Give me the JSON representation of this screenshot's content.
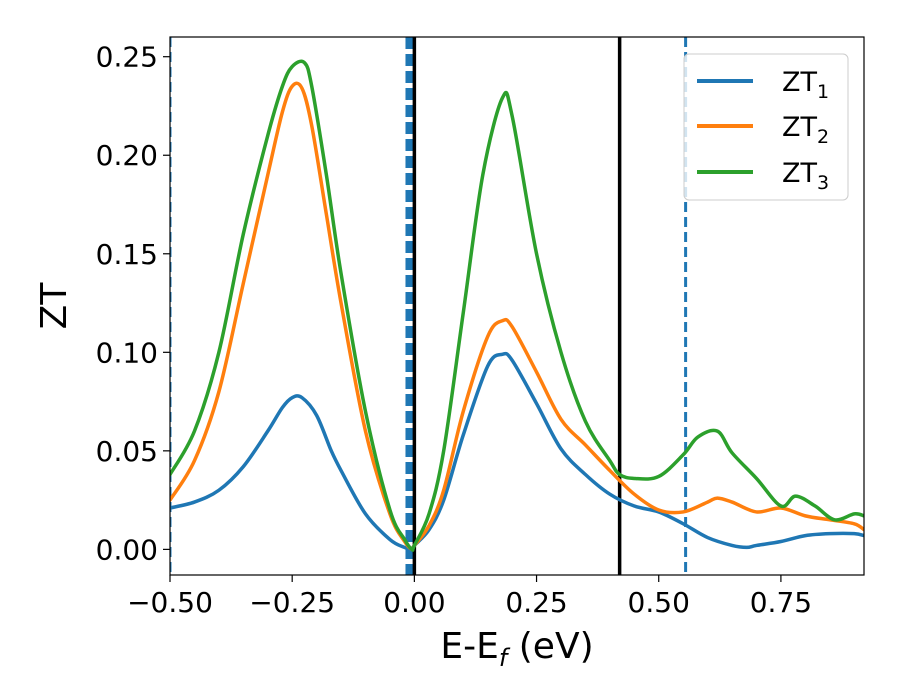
{
  "chart_data": {
    "type": "line",
    "xlabel": "E-E",
    "xlabel_sub": "f",
    "xlabel_unit": " (eV)",
    "ylabel": "ZT",
    "xlim": [
      -0.5,
      0.92
    ],
    "ylim": [
      -0.013,
      0.26
    ],
    "xticks": [
      -0.5,
      -0.25,
      0.0,
      0.25,
      0.5,
      0.75
    ],
    "xtick_labels": [
      "−0.50",
      "−0.25",
      "0.00",
      "0.25",
      "0.50",
      "0.75"
    ],
    "yticks": [
      0.0,
      0.05,
      0.1,
      0.15,
      0.2,
      0.25
    ],
    "ytick_labels": [
      "0.00",
      "0.05",
      "0.10",
      "0.15",
      "0.20",
      "0.25"
    ],
    "grid": false,
    "legend_position": "top-right",
    "series": [
      {
        "name": "ZT",
        "name_sub": "1",
        "color": "#1f77b4",
        "x": [
          -0.5,
          -0.45,
          -0.4,
          -0.35,
          -0.3,
          -0.27,
          -0.25,
          -0.23,
          -0.2,
          -0.17,
          -0.15,
          -0.1,
          -0.05,
          -0.02,
          -0.005,
          0.0,
          0.03,
          0.06,
          0.1,
          0.15,
          0.18,
          0.2,
          0.25,
          0.3,
          0.35,
          0.4,
          0.45,
          0.5,
          0.55,
          0.6,
          0.65,
          0.68,
          0.7,
          0.75,
          0.8,
          0.85,
          0.9,
          0.92
        ],
        "y": [
          0.021,
          0.024,
          0.03,
          0.042,
          0.06,
          0.072,
          0.077,
          0.077,
          0.068,
          0.05,
          0.04,
          0.018,
          0.005,
          0.001,
          0.0,
          0.002,
          0.01,
          0.025,
          0.058,
          0.093,
          0.099,
          0.096,
          0.074,
          0.051,
          0.038,
          0.028,
          0.022,
          0.019,
          0.013,
          0.006,
          0.002,
          0.001,
          0.002,
          0.004,
          0.007,
          0.008,
          0.008,
          0.007
        ]
      },
      {
        "name": "ZT",
        "name_sub": "2",
        "color": "#ff7f0e",
        "x": [
          -0.5,
          -0.45,
          -0.4,
          -0.35,
          -0.3,
          -0.27,
          -0.25,
          -0.23,
          -0.21,
          -0.18,
          -0.15,
          -0.1,
          -0.05,
          -0.02,
          -0.005,
          0.0,
          0.03,
          0.06,
          0.1,
          0.15,
          0.18,
          0.2,
          0.25,
          0.3,
          0.35,
          0.4,
          0.45,
          0.5,
          0.55,
          0.6,
          0.62,
          0.65,
          0.7,
          0.75,
          0.8,
          0.85,
          0.9,
          0.92
        ],
        "y": [
          0.025,
          0.045,
          0.08,
          0.135,
          0.19,
          0.222,
          0.235,
          0.234,
          0.215,
          0.17,
          0.125,
          0.06,
          0.018,
          0.004,
          0.0,
          0.002,
          0.012,
          0.03,
          0.07,
          0.108,
          0.116,
          0.113,
          0.09,
          0.066,
          0.053,
          0.04,
          0.028,
          0.02,
          0.019,
          0.024,
          0.026,
          0.024,
          0.019,
          0.021,
          0.017,
          0.015,
          0.013,
          0.01
        ]
      },
      {
        "name": "ZT",
        "name_sub": "3",
        "color": "#2ca02c",
        "x": [
          -0.5,
          -0.45,
          -0.4,
          -0.35,
          -0.3,
          -0.27,
          -0.25,
          -0.225,
          -0.21,
          -0.18,
          -0.15,
          -0.1,
          -0.05,
          -0.02,
          -0.005,
          0.0,
          0.03,
          0.06,
          0.1,
          0.14,
          0.18,
          0.2,
          0.25,
          0.3,
          0.35,
          0.4,
          0.42,
          0.45,
          0.5,
          0.55,
          0.58,
          0.62,
          0.65,
          0.7,
          0.75,
          0.78,
          0.82,
          0.86,
          0.9,
          0.92
        ],
        "y": [
          0.038,
          0.06,
          0.1,
          0.16,
          0.21,
          0.235,
          0.245,
          0.247,
          0.235,
          0.19,
          0.14,
          0.07,
          0.02,
          0.005,
          0.0,
          0.002,
          0.018,
          0.05,
          0.12,
          0.19,
          0.229,
          0.22,
          0.15,
          0.1,
          0.065,
          0.045,
          0.038,
          0.036,
          0.037,
          0.048,
          0.057,
          0.06,
          0.049,
          0.036,
          0.022,
          0.027,
          0.022,
          0.015,
          0.018,
          0.017
        ]
      }
    ],
    "vlines": [
      {
        "x": -0.5,
        "color": "#1f77b4",
        "style": "dashed",
        "width": 3
      },
      {
        "x": -0.01,
        "color": "#1f77b4",
        "style": "dashed",
        "width": 8
      },
      {
        "x": 0.0,
        "color": "#000000",
        "style": "solid",
        "width": 3.5
      },
      {
        "x": 0.42,
        "color": "#000000",
        "style": "solid",
        "width": 3.5
      },
      {
        "x": 0.555,
        "color": "#1f77b4",
        "style": "dashed",
        "width": 3
      }
    ]
  }
}
